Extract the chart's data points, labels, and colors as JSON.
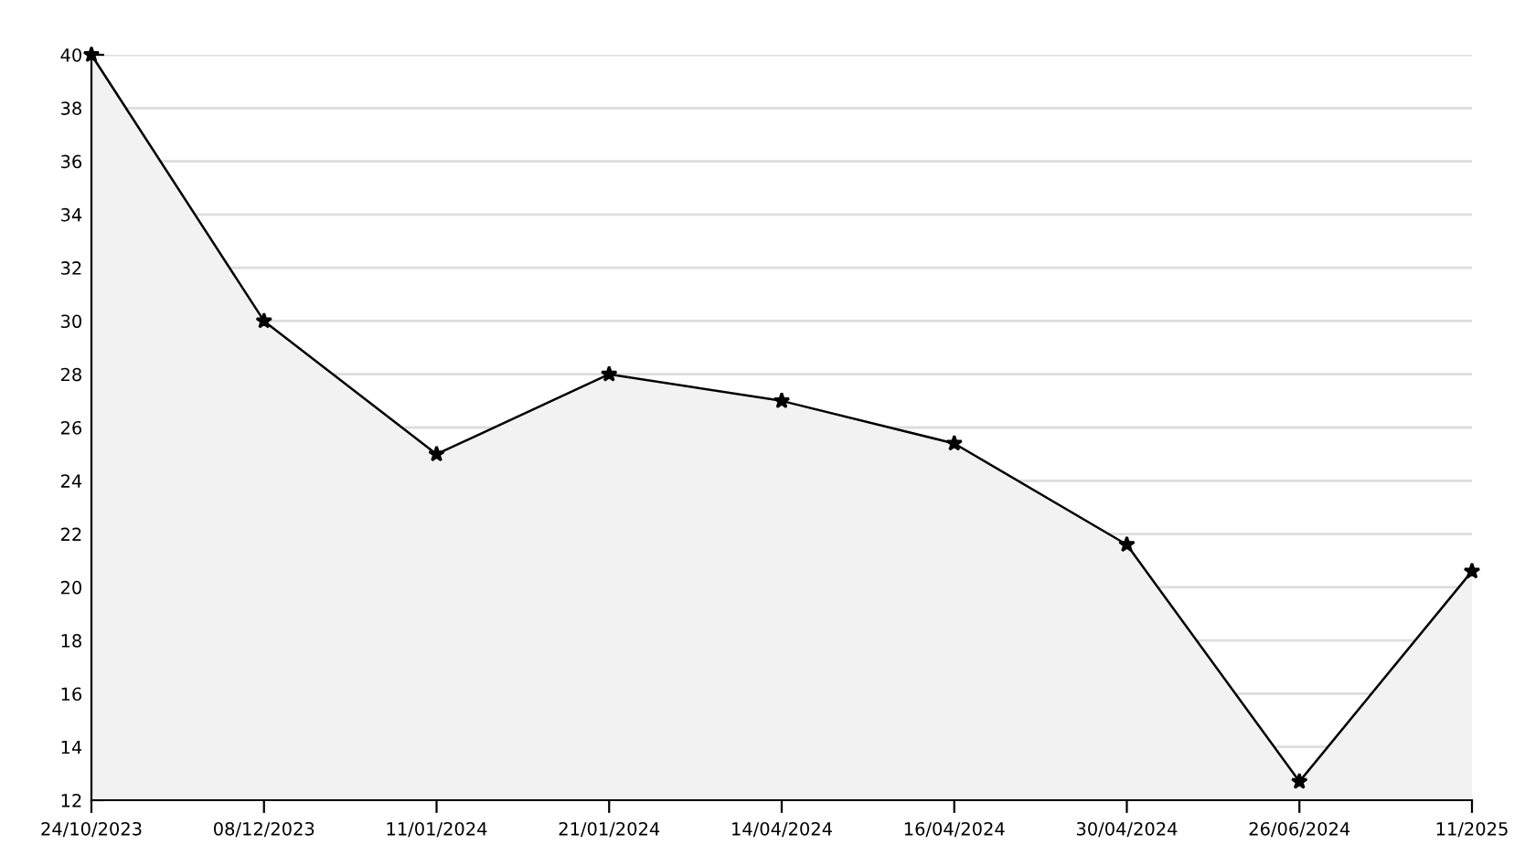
{
  "chart_data": {
    "type": "area",
    "categories": [
      "24/10/2023",
      "08/12/2023",
      "11/01/2024",
      "21/01/2024",
      "14/04/2024",
      "16/04/2024",
      "30/04/2024",
      "26/06/2024",
      "11/2025"
    ],
    "series": [
      {
        "color": "#000000",
        "values": [
          40,
          30,
          25,
          28,
          27,
          25.4,
          21.6,
          12.7,
          20.6
        ]
      }
    ],
    "ylim": [
      12,
      40
    ],
    "yticks": [
      12,
      14,
      16,
      18,
      20,
      22,
      24,
      26,
      28,
      30,
      32,
      34,
      36,
      38,
      40
    ],
    "grid": "y",
    "marker": "star",
    "line_style": "solid",
    "legend": false
  }
}
